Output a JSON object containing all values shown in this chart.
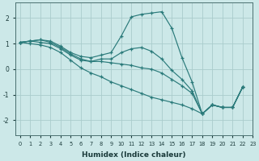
{
  "xlabel": "Humidex (Indice chaleur)",
  "background_color": "#cce8e8",
  "line_color": "#2a7a7a",
  "grid_color": "#aacccc",
  "xlim": [
    -0.5,
    23
  ],
  "ylim": [
    -2.6,
    2.6
  ],
  "yticks": [
    -2,
    -1,
    0,
    1,
    2
  ],
  "xticks": [
    0,
    1,
    2,
    3,
    4,
    5,
    6,
    7,
    8,
    9,
    10,
    11,
    12,
    13,
    14,
    15,
    16,
    17,
    18,
    19,
    20,
    21,
    22,
    23
  ],
  "line1_x": [
    0,
    1,
    2,
    3,
    4,
    5,
    6,
    7,
    8,
    9,
    10,
    11,
    12,
    13,
    14,
    15,
    16,
    17,
    18,
    19,
    20,
    21,
    22
  ],
  "line1_y": [
    1.05,
    1.1,
    1.15,
    1.1,
    0.9,
    0.65,
    0.5,
    0.45,
    0.55,
    0.65,
    1.3,
    2.05,
    2.15,
    2.2,
    2.25,
    1.6,
    0.45,
    -0.5,
    -1.75,
    -1.4,
    -1.5,
    -1.5,
    -0.7
  ],
  "line2_x": [
    0,
    1,
    2,
    3,
    4,
    5,
    6,
    7,
    8,
    9,
    10,
    11,
    12,
    13,
    14,
    15,
    16,
    17,
    18,
    19,
    20,
    21,
    22
  ],
  "line2_y": [
    1.05,
    1.1,
    1.05,
    1.0,
    0.8,
    0.55,
    0.35,
    0.3,
    0.4,
    0.4,
    0.65,
    0.8,
    0.85,
    0.7,
    0.4,
    -0.05,
    -0.4,
    -0.85,
    -1.75,
    -1.4,
    -1.5,
    -1.5,
    -0.7
  ],
  "line3_x": [
    0,
    1,
    2,
    3,
    4,
    5,
    6,
    7,
    8,
    9,
    10,
    11,
    12,
    13,
    14,
    15,
    16,
    17,
    18,
    19,
    20,
    21,
    22
  ],
  "line3_y": [
    1.05,
    1.0,
    0.95,
    0.85,
    0.65,
    0.35,
    0.05,
    -0.15,
    -0.3,
    -0.5,
    -0.65,
    -0.8,
    -0.95,
    -1.1,
    -1.2,
    -1.3,
    -1.4,
    -1.55,
    -1.75,
    -1.4,
    -1.5,
    -1.5,
    -0.7
  ],
  "line4_x": [
    0,
    1,
    2,
    3,
    4,
    5,
    6,
    7,
    8,
    9,
    10,
    11,
    12,
    13,
    14,
    15,
    16,
    17,
    18,
    19,
    20,
    21,
    22
  ],
  "line4_y": [
    1.05,
    1.1,
    1.15,
    1.05,
    0.85,
    0.6,
    0.4,
    0.3,
    0.3,
    0.25,
    0.2,
    0.15,
    0.05,
    0.0,
    -0.15,
    -0.4,
    -0.65,
    -0.95,
    -1.75,
    -1.4,
    -1.5,
    -1.5,
    -0.7
  ]
}
